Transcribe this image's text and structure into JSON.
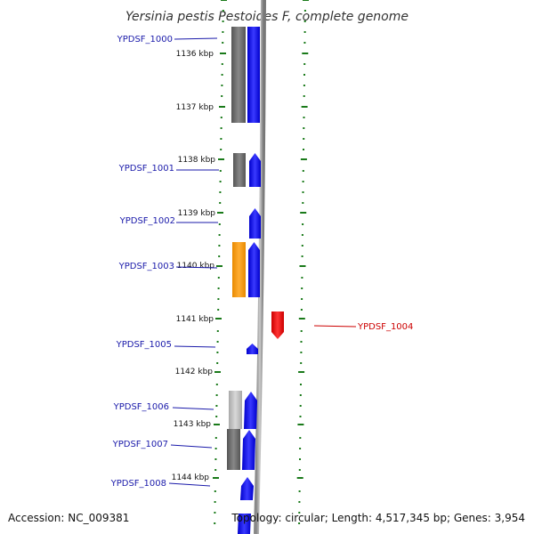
{
  "title": "Yersinia pestis Pestoides F, complete genome",
  "footer": {
    "accession": "Accession: NC_009381",
    "summary": "Topology: circular; Length: 4,517,345 bp; Genes: 3,954"
  },
  "colors": {
    "forward_cds": "#1a1aff",
    "reverse_cds": "#ff1a1a",
    "gc_dark": "#666666",
    "gc_light": "#b8b8b8",
    "gc_orange": "#ff9900",
    "tick": "#1a7a1a",
    "forward_label": "#1a1aaa",
    "reverse_label": "#cc0000"
  },
  "ticks": [
    "1136 kbp",
    "1137 kbp",
    "1138 kbp",
    "1139 kbp",
    "1140 kbp",
    "1141 kbp",
    "1142 kbp",
    "1143 kbp",
    "1144 kbp"
  ],
  "genes": [
    {
      "id": "YPDSF_1000",
      "strand": "forward"
    },
    {
      "id": "YPDSF_1001",
      "strand": "forward"
    },
    {
      "id": "YPDSF_1002",
      "strand": "forward"
    },
    {
      "id": "YPDSF_1003",
      "strand": "forward"
    },
    {
      "id": "YPDSF_1004",
      "strand": "reverse"
    },
    {
      "id": "YPDSF_1005",
      "strand": "forward"
    },
    {
      "id": "YPDSF_1006",
      "strand": "forward"
    },
    {
      "id": "YPDSF_1007",
      "strand": "forward"
    },
    {
      "id": "YPDSF_1008",
      "strand": "forward"
    }
  ]
}
